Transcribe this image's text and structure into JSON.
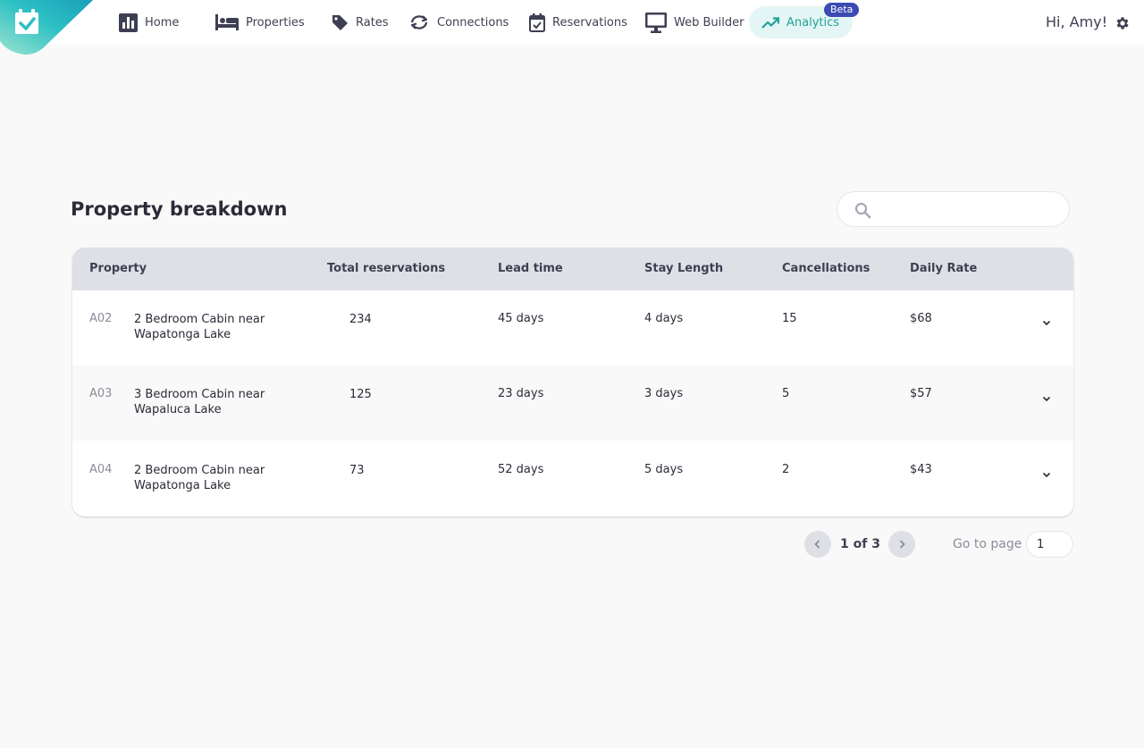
{
  "nav": {
    "items": [
      {
        "label": "Home",
        "icon": "bar-chart-icon"
      },
      {
        "label": "Properties",
        "icon": "bed-icon"
      },
      {
        "label": "Rates",
        "icon": "tag-icon"
      },
      {
        "label": "Connections",
        "icon": "sync-icon"
      },
      {
        "label": "Reservations",
        "icon": "calendar-check-icon"
      },
      {
        "label": "Web Builder",
        "icon": "monitor-icon"
      },
      {
        "label": "Analytics",
        "icon": "trending-up-icon",
        "active": true
      }
    ],
    "beta_badge": "Beta",
    "greeting": "Hi, Amy!"
  },
  "section": {
    "title": "Property breakdown",
    "search_value": ""
  },
  "table": {
    "columns": [
      "Property",
      "Total reservations",
      "Lead time",
      "Stay Length",
      "Cancellations",
      "Daily Rate"
    ],
    "rows": [
      {
        "code": "A02",
        "name": "2 Bedroom Cabin near Wapatonga Lake",
        "total_reservations": "234",
        "lead_time": "45 days",
        "stay_length": "4 days",
        "cancellations": "15",
        "daily_rate": "$68"
      },
      {
        "code": "A03",
        "name": "3 Bedroom Cabin near Wapaluca Lake",
        "total_reservations": "125",
        "lead_time": "23 days",
        "stay_length": "3 days",
        "cancellations": "5",
        "daily_rate": "$57"
      },
      {
        "code": "A04",
        "name": "2 Bedroom Cabin near Wapatonga Lake",
        "total_reservations": "73",
        "lead_time": "52 days",
        "stay_length": "5 days",
        "cancellations": "2",
        "daily_rate": "$43"
      }
    ]
  },
  "pagination": {
    "info": "1 of 3",
    "goto_label": "Go to page",
    "page_value": "1"
  },
  "colors": {
    "accent": "#1fa39a",
    "active_bg": "#e3f5f4",
    "badge": "#3b4bb3",
    "header_bg": "#dfe0e6",
    "page_bg": "#f9f9f9"
  }
}
